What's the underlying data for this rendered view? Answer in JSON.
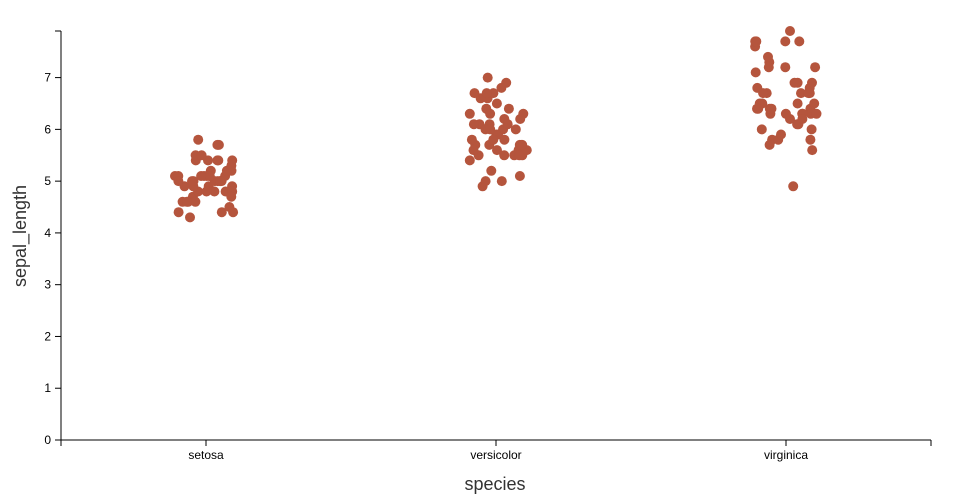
{
  "chart_data": {
    "type": "scatter",
    "subtype": "strip-jitter",
    "xlabel": "species",
    "ylabel": "sepal_length",
    "categories": [
      "setosa",
      "versicolor",
      "virginica"
    ],
    "ylim": [
      0,
      7.9
    ],
    "yticks": [
      0,
      1,
      2,
      3,
      4,
      5,
      6,
      7
    ],
    "grid": false,
    "point_color": "#b5553d",
    "series": [
      {
        "values": {
          "setosa": [
            5.1,
            4.9,
            4.7,
            4.6,
            5.0,
            5.4,
            4.6,
            5.0,
            4.4,
            4.9,
            5.4,
            4.8,
            4.8,
            4.3,
            5.8,
            5.7,
            5.4,
            5.1,
            5.7,
            5.1,
            5.4,
            5.1,
            4.6,
            5.1,
            4.8,
            5.0,
            5.0,
            5.2,
            5.2,
            4.7,
            4.8,
            5.4,
            5.2,
            5.5,
            4.9,
            5.0,
            5.5,
            4.9,
            4.4,
            5.1,
            5.0,
            4.5,
            4.4,
            5.0,
            5.1,
            4.8,
            5.1,
            4.6,
            5.3,
            5.0
          ],
          "versicolor": [
            7.0,
            6.4,
            6.9,
            5.5,
            6.5,
            5.7,
            6.3,
            4.9,
            6.6,
            5.2,
            5.0,
            5.9,
            6.0,
            6.1,
            5.6,
            6.7,
            5.6,
            5.8,
            6.2,
            5.6,
            5.9,
            6.1,
            6.3,
            6.1,
            6.4,
            6.6,
            6.8,
            6.7,
            6.0,
            5.7,
            5.5,
            5.5,
            5.8,
            6.0,
            5.4,
            6.0,
            6.7,
            6.3,
            5.6,
            5.5,
            5.5,
            6.1,
            5.8,
            5.0,
            5.6,
            5.7,
            5.7,
            6.2,
            5.1,
            5.7
          ],
          "virginica": [
            6.3,
            5.8,
            7.1,
            6.3,
            6.5,
            7.6,
            4.9,
            7.3,
            6.7,
            7.2,
            6.5,
            6.4,
            6.8,
            5.7,
            5.8,
            6.4,
            6.5,
            7.7,
            7.7,
            6.0,
            6.9,
            5.6,
            7.7,
            6.3,
            6.7,
            7.2,
            6.2,
            6.1,
            6.4,
            7.2,
            7.4,
            7.9,
            6.4,
            6.3,
            6.1,
            7.7,
            6.3,
            6.4,
            6.0,
            6.9,
            6.7,
            6.9,
            5.8,
            6.8,
            6.7,
            6.7,
            6.3,
            6.5,
            6.2,
            5.9
          ]
        }
      }
    ]
  }
}
